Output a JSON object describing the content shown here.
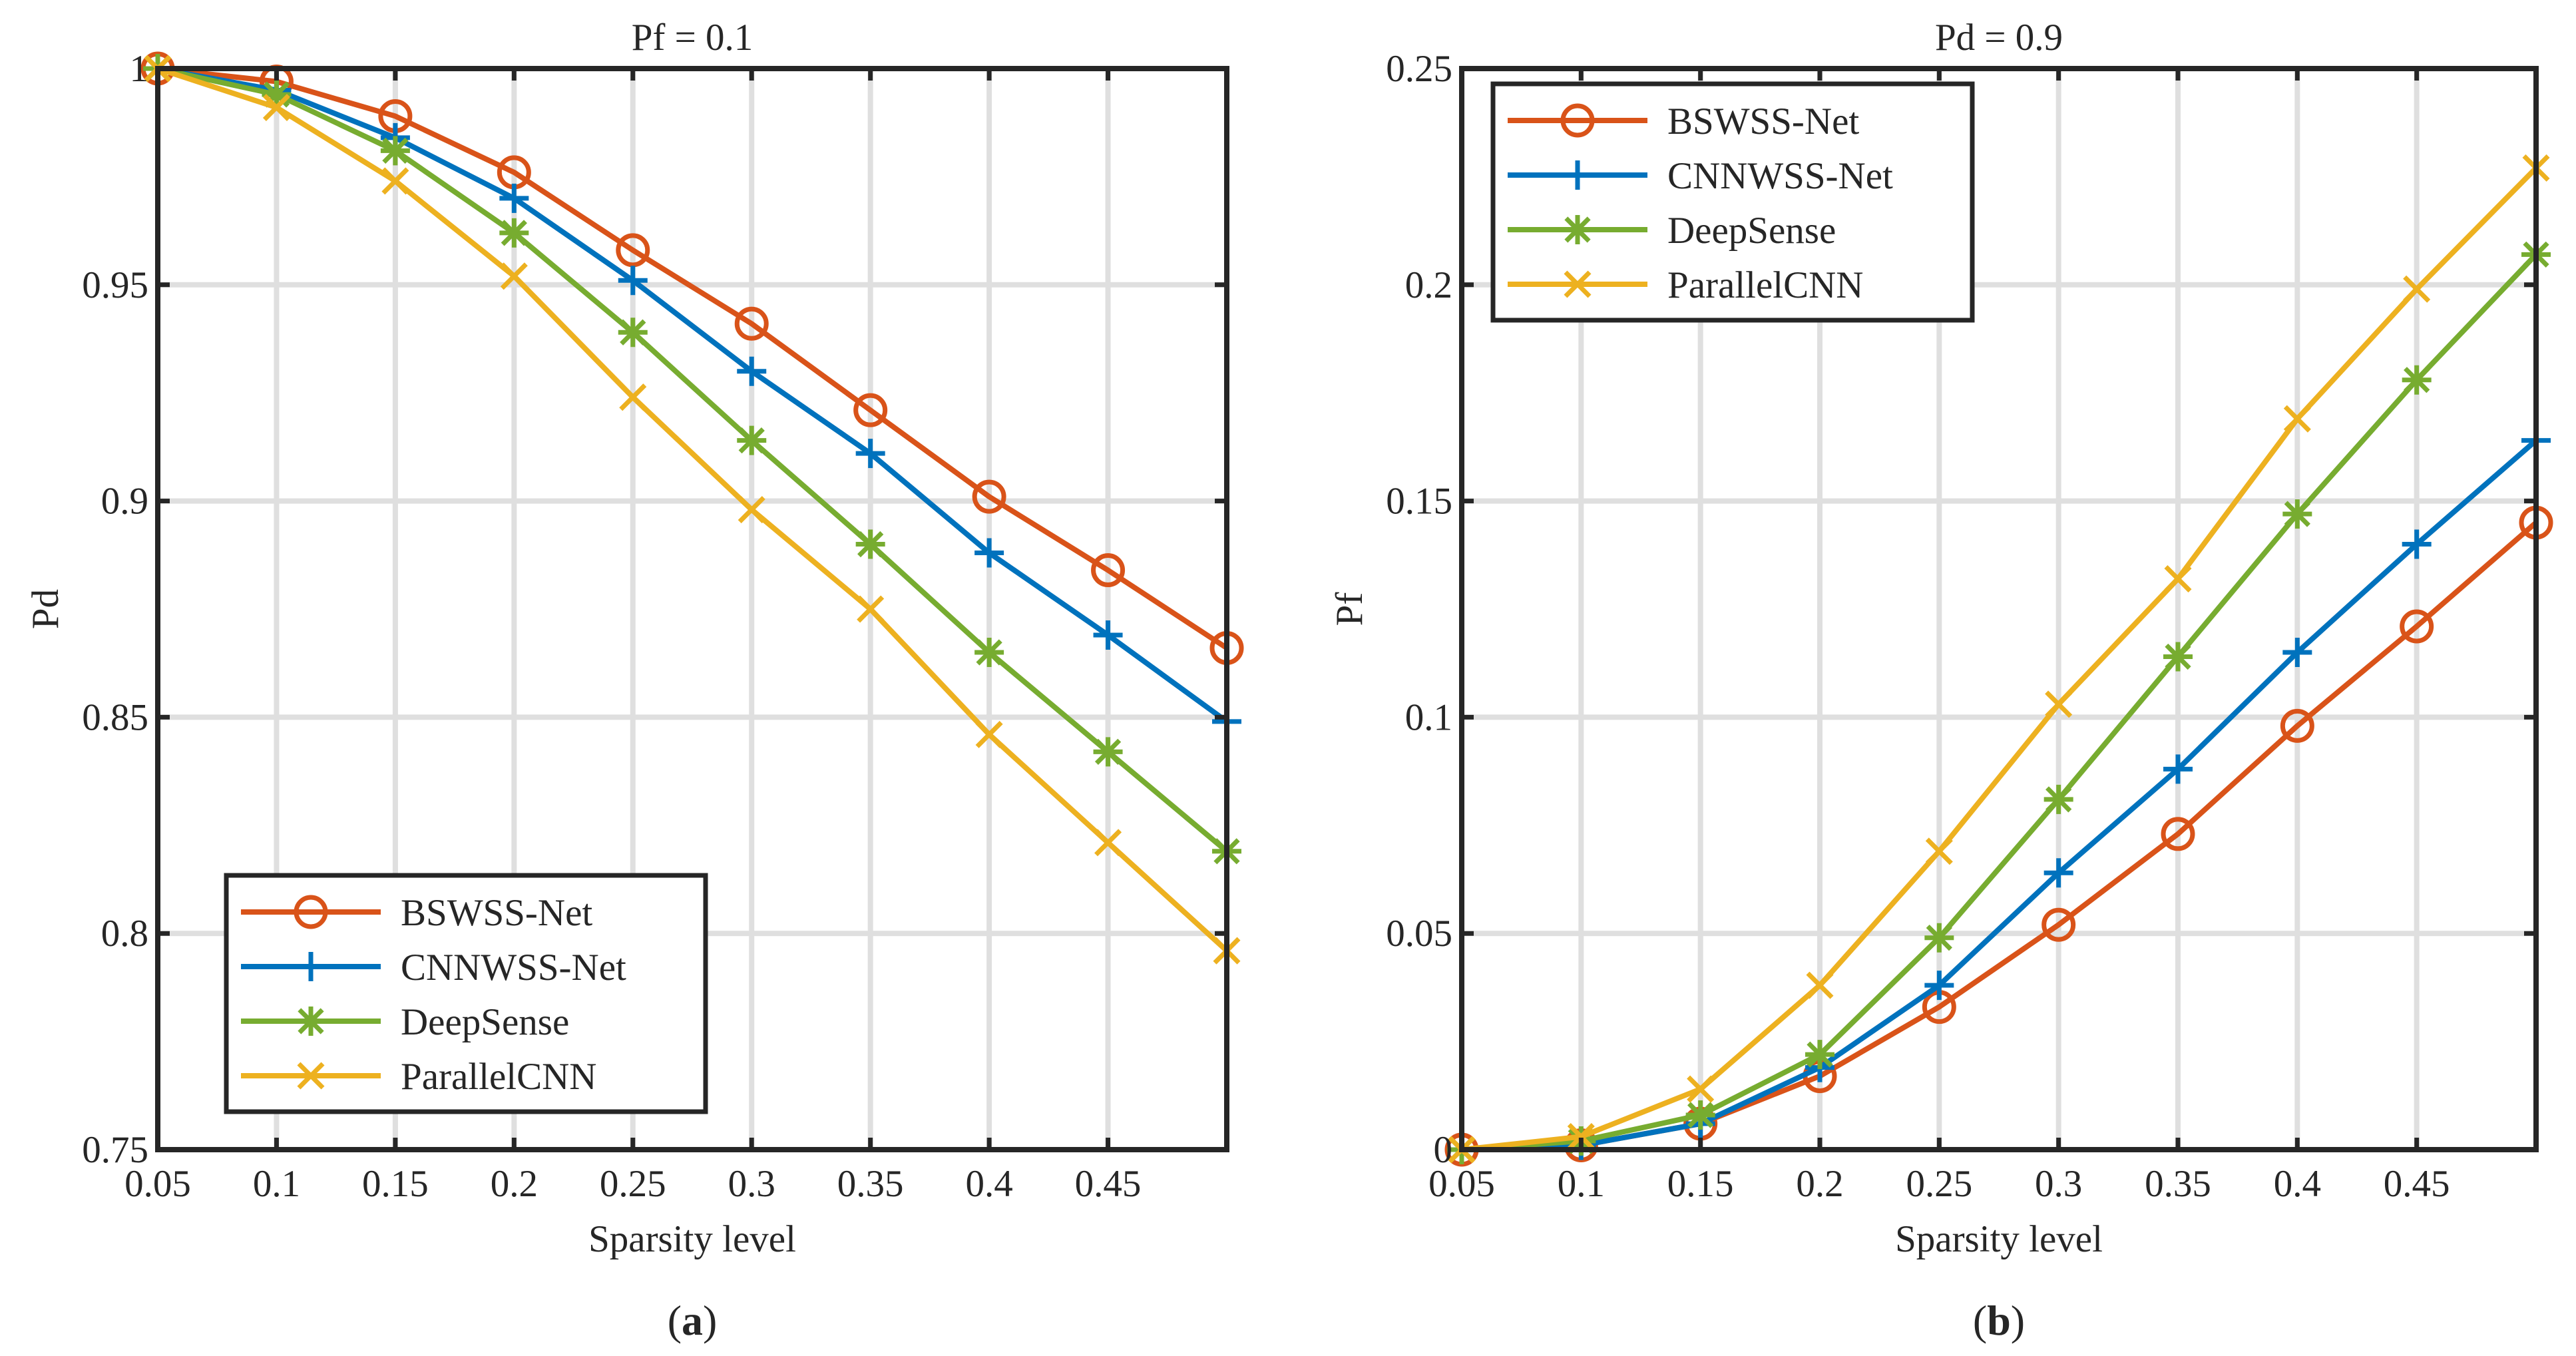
{
  "chart_data": [
    {
      "type": "line",
      "panel_label": "a",
      "title": "Pf = 0.1",
      "xlabel": "Sparsity level",
      "ylabel": "Pd",
      "xlim": [
        0.05,
        0.5
      ],
      "ylim": [
        0.75,
        1.0
      ],
      "x": [
        0.05,
        0.1,
        0.15,
        0.2,
        0.25,
        0.3,
        0.35,
        0.4,
        0.45,
        0.5
      ],
      "xtick_values": [
        0.05,
        0.1,
        0.15,
        0.2,
        0.25,
        0.3,
        0.35,
        0.4,
        0.45,
        0.5
      ],
      "xtick_labels": [
        "0.05",
        "0.1",
        "0.15",
        "0.2",
        "0.25",
        "0.3",
        "0.35",
        "0.4",
        "0.45",
        ""
      ],
      "ytick_values": [
        0.75,
        0.8,
        0.85,
        0.9,
        0.95,
        1.0
      ],
      "ytick_labels": [
        "0.75",
        "0.8",
        "0.85",
        "0.9",
        "0.95",
        "1"
      ],
      "grid": true,
      "legend_position": "bottom-left",
      "series": [
        {
          "name": "BSWSS-Net",
          "color": "#d95319",
          "marker": "circle",
          "values": [
            1.0,
            0.997,
            0.989,
            0.976,
            0.958,
            0.941,
            0.921,
            0.901,
            0.884,
            0.866
          ]
        },
        {
          "name": "CNNWSS-Net",
          "color": "#0072bd",
          "marker": "plus",
          "values": [
            1.0,
            0.995,
            0.984,
            0.97,
            0.951,
            0.93,
            0.911,
            0.888,
            0.869,
            0.849
          ]
        },
        {
          "name": "DeepSense",
          "color": "#77ac30",
          "marker": "asterisk",
          "values": [
            1.0,
            0.994,
            0.981,
            0.962,
            0.939,
            0.914,
            0.89,
            0.865,
            0.842,
            0.819
          ]
        },
        {
          "name": "ParallelCNN",
          "color": "#edb120",
          "marker": "x",
          "values": [
            1.0,
            0.991,
            0.974,
            0.952,
            0.924,
            0.898,
            0.875,
            0.846,
            0.821,
            0.796
          ]
        }
      ]
    },
    {
      "type": "line",
      "panel_label": "b",
      "title": "Pd = 0.9",
      "xlabel": "Sparsity level",
      "ylabel": "Pf",
      "xlim": [
        0.05,
        0.5
      ],
      "ylim": [
        0,
        0.25
      ],
      "x": [
        0.05,
        0.1,
        0.15,
        0.2,
        0.25,
        0.3,
        0.35,
        0.4,
        0.45,
        0.5
      ],
      "xtick_values": [
        0.05,
        0.1,
        0.15,
        0.2,
        0.25,
        0.3,
        0.35,
        0.4,
        0.45,
        0.5
      ],
      "xtick_labels": [
        "0.05",
        "0.1",
        "0.15",
        "0.2",
        "0.25",
        "0.3",
        "0.35",
        "0.4",
        "0.45",
        ""
      ],
      "ytick_values": [
        0,
        0.05,
        0.1,
        0.15,
        0.2,
        0.25
      ],
      "ytick_labels": [
        "0",
        "0.05",
        "0.1",
        "0.15",
        "0.2",
        "0.25"
      ],
      "grid": true,
      "legend_position": "top-left",
      "series": [
        {
          "name": "BSWSS-Net",
          "color": "#d95319",
          "marker": "circle",
          "values": [
            0.0,
            0.001,
            0.006,
            0.017,
            0.033,
            0.052,
            0.073,
            0.098,
            0.121,
            0.145
          ]
        },
        {
          "name": "CNNWSS-Net",
          "color": "#0072bd",
          "marker": "plus",
          "values": [
            0.0,
            0.001,
            0.006,
            0.019,
            0.038,
            0.064,
            0.088,
            0.115,
            0.14,
            0.164
          ]
        },
        {
          "name": "DeepSense",
          "color": "#77ac30",
          "marker": "asterisk",
          "values": [
            0.0,
            0.002,
            0.008,
            0.022,
            0.049,
            0.081,
            0.114,
            0.147,
            0.178,
            0.207
          ]
        },
        {
          "name": "ParallelCNN",
          "color": "#edb120",
          "marker": "x",
          "values": [
            0.0,
            0.003,
            0.014,
            0.038,
            0.069,
            0.103,
            0.132,
            0.169,
            0.199,
            0.227
          ]
        }
      ]
    }
  ]
}
